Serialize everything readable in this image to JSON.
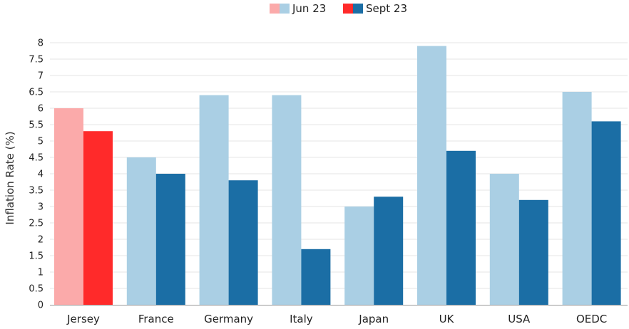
{
  "chart_data": {
    "type": "bar",
    "title": "",
    "xlabel": "",
    "ylabel": "Inflation Rate (%)",
    "ylim": [
      0,
      8
    ],
    "yticks": [
      "0",
      "0.5",
      "1",
      "1.5",
      "2",
      "2.5",
      "3",
      "3.5",
      "4",
      "4.5",
      "5",
      "5.5",
      "6",
      "6.5",
      "7",
      "7.5",
      "8"
    ],
    "grid": true,
    "legend_position": "top-center",
    "categories": [
      "Jersey",
      "France",
      "Germany",
      "Italy",
      "Japan",
      "UK",
      "USA",
      "OEDC"
    ],
    "series": [
      {
        "name": "Jun 23",
        "values": [
          6.0,
          4.5,
          6.4,
          6.4,
          3.0,
          7.9,
          4.0,
          6.5
        ],
        "color": "#aacfe4",
        "highlight_color": "#fbaaaa"
      },
      {
        "name": "Sept 23",
        "values": [
          5.3,
          4.0,
          3.8,
          1.7,
          3.3,
          4.7,
          3.2,
          5.6
        ],
        "color": "#1b6ea5",
        "highlight_color": "#ff2a2a"
      }
    ],
    "highlight_category": "Jersey"
  }
}
